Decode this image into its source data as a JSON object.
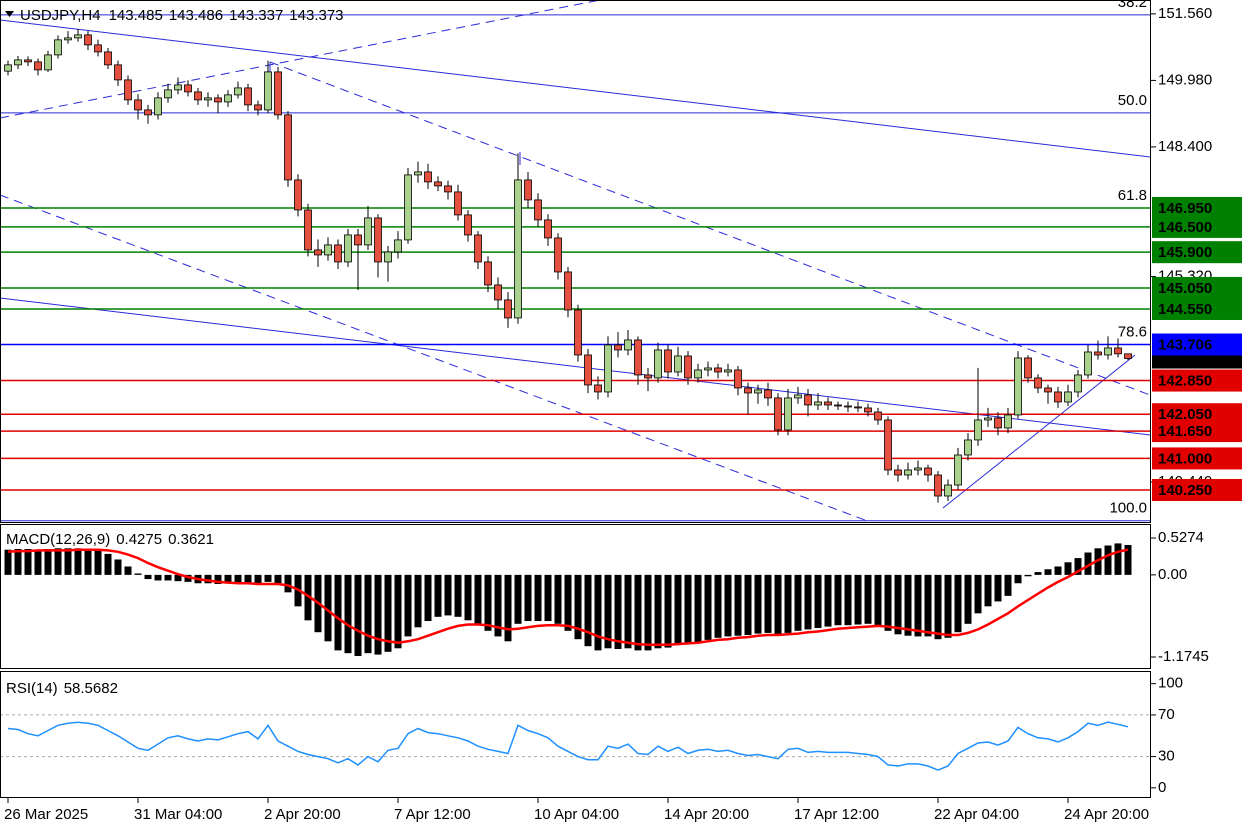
{
  "chart_data": [
    {
      "type": "candlestick",
      "title": "USDJPY,H4",
      "ylim": [
        139.49,
        151.89
      ],
      "yticks": [
        {
          "value": 151.56,
          "label": "151.560"
        },
        {
          "value": 149.98,
          "label": "149.980"
        },
        {
          "value": 148.4,
          "label": "148.400"
        },
        {
          "value": 145.32,
          "label": "145.320"
        },
        {
          "value": 140.44,
          "label": "140.440"
        }
      ],
      "xticks": [
        {
          "value": 0,
          "label": "26 Mar 2025"
        },
        {
          "value": 13,
          "label": "31 Mar 04:00"
        },
        {
          "value": 26,
          "label": "2 Apr 20:00"
        },
        {
          "value": 39,
          "label": "7 Apr 12:00"
        },
        {
          "value": 53,
          "label": "10 Apr 04:00"
        },
        {
          "value": 66,
          "label": "14 Apr 20:00"
        },
        {
          "value": 79,
          "label": "17 Apr 12:00"
        },
        {
          "value": 93,
          "label": "22 Apr 04:00"
        },
        {
          "value": 106,
          "label": "24 Apr 20:00"
        }
      ],
      "up_color": "#a9d18e",
      "down_color": "#e4503f",
      "levels": [
        {
          "value": 146.95,
          "label": "146.950",
          "color": "#008000"
        },
        {
          "value": 146.5,
          "label": "146.500",
          "color": "#008000"
        },
        {
          "value": 145.9,
          "label": "145.900",
          "color": "#008000"
        },
        {
          "value": 145.05,
          "label": "145.050",
          "color": "#008000"
        },
        {
          "value": 144.55,
          "label": "144.550",
          "color": "#008000"
        },
        {
          "value": 143.706,
          "label": "143.706",
          "color": "#0000ff"
        },
        {
          "value": 142.85,
          "label": "142.850",
          "color": "#e00000"
        },
        {
          "value": 142.05,
          "label": "142.050",
          "color": "#e00000"
        },
        {
          "value": 141.65,
          "label": "141.650",
          "color": "#e00000"
        },
        {
          "value": 141.0,
          "label": "141.000",
          "color": "#e00000"
        },
        {
          "value": 140.25,
          "label": "140.250",
          "color": "#e00000"
        }
      ],
      "fib": [
        {
          "value": 151.537,
          "label": "38.2"
        },
        {
          "value": 149.208,
          "label": "50.0"
        },
        {
          "value": 146.95,
          "label": "61.8"
        },
        {
          "value": 143.706,
          "label": "78.6"
        },
        {
          "value": 139.52,
          "label": "100.0"
        }
      ],
      "ohlc": [
        [
          150.2,
          150.45,
          150.1,
          150.349
        ],
        [
          150.349,
          150.56,
          150.25,
          150.467
        ],
        [
          150.467,
          150.55,
          150.32,
          150.42
        ],
        [
          150.42,
          150.5,
          150.1,
          150.23
        ],
        [
          150.23,
          150.68,
          150.18,
          150.586
        ],
        [
          150.586,
          151.05,
          150.5,
          150.943
        ],
        [
          150.943,
          151.15,
          150.85,
          150.99
        ],
        [
          150.99,
          151.2,
          150.9,
          151.061
        ],
        [
          151.061,
          151.15,
          150.7,
          150.824
        ],
        [
          150.824,
          150.95,
          150.55,
          150.657
        ],
        [
          150.657,
          150.75,
          150.25,
          150.349
        ],
        [
          150.349,
          150.45,
          149.85,
          149.992
        ],
        [
          149.992,
          150.1,
          149.4,
          149.517
        ],
        [
          149.517,
          149.65,
          149.05,
          149.279
        ],
        [
          149.279,
          149.4,
          148.95,
          149.161
        ],
        [
          149.161,
          149.7,
          149.05,
          149.565
        ],
        [
          149.565,
          149.9,
          149.45,
          149.755
        ],
        [
          149.755,
          150.05,
          149.65,
          149.873
        ],
        [
          149.873,
          149.98,
          149.6,
          149.707
        ],
        [
          149.707,
          149.8,
          149.4,
          149.517
        ],
        [
          149.517,
          149.7,
          149.35,
          149.565
        ],
        [
          149.565,
          149.65,
          149.2,
          149.469
        ],
        [
          149.469,
          149.75,
          149.35,
          149.636
        ],
        [
          149.636,
          149.95,
          149.55,
          149.802
        ],
        [
          149.802,
          149.9,
          149.25,
          149.398
        ],
        [
          149.398,
          149.5,
          149.15,
          149.279
        ],
        [
          149.279,
          150.45,
          149.2,
          150.182
        ],
        [
          150.182,
          150.3,
          149.05,
          149.161
        ],
        [
          149.161,
          149.25,
          147.45,
          147.616
        ],
        [
          147.616,
          147.75,
          146.75,
          146.903
        ],
        [
          146.903,
          147.05,
          145.8,
          145.953
        ],
        [
          145.953,
          146.2,
          145.55,
          145.834
        ],
        [
          145.834,
          146.25,
          145.7,
          146.072
        ],
        [
          146.072,
          146.2,
          145.5,
          145.668
        ],
        [
          145.668,
          146.45,
          145.55,
          146.309
        ],
        [
          146.309,
          146.45,
          145.0,
          146.072
        ],
        [
          146.072,
          147.0,
          145.95,
          146.713
        ],
        [
          146.713,
          146.8,
          145.3,
          145.668
        ],
        [
          145.668,
          146.05,
          145.2,
          145.905
        ],
        [
          145.905,
          146.4,
          145.75,
          146.191
        ],
        [
          146.191,
          147.9,
          146.1,
          147.735
        ],
        [
          147.735,
          148.05,
          147.55,
          147.806
        ],
        [
          147.806,
          148.0,
          147.4,
          147.569
        ],
        [
          147.569,
          147.7,
          147.35,
          147.474
        ],
        [
          147.474,
          147.6,
          147.15,
          147.331
        ],
        [
          147.331,
          147.5,
          146.65,
          146.785
        ],
        [
          146.785,
          146.9,
          146.15,
          146.309
        ],
        [
          146.309,
          146.4,
          145.5,
          145.668
        ],
        [
          145.668,
          145.8,
          144.95,
          145.121
        ],
        [
          145.121,
          145.3,
          144.55,
          144.765
        ],
        [
          144.765,
          144.95,
          144.1,
          144.337
        ],
        [
          144.337,
          148.25,
          144.2,
          147.616
        ],
        [
          147.616,
          147.8,
          146.95,
          147.141
        ],
        [
          147.141,
          147.3,
          146.5,
          146.666
        ],
        [
          146.666,
          146.8,
          146.05,
          146.238
        ],
        [
          146.238,
          146.35,
          145.25,
          145.43
        ],
        [
          145.43,
          145.55,
          144.35,
          144.527
        ],
        [
          144.527,
          144.65,
          143.3,
          143.458
        ],
        [
          143.458,
          143.6,
          142.55,
          142.745
        ],
        [
          142.745,
          142.95,
          142.4,
          142.579
        ],
        [
          142.579,
          143.9,
          142.45,
          143.696
        ],
        [
          143.696,
          144.0,
          143.4,
          143.577
        ],
        [
          143.577,
          144.05,
          143.45,
          143.815
        ],
        [
          143.815,
          143.9,
          142.75,
          142.983
        ],
        [
          142.983,
          143.15,
          142.6,
          142.912
        ],
        [
          142.912,
          143.75,
          142.8,
          143.577
        ],
        [
          143.577,
          143.7,
          142.9,
          143.054
        ],
        [
          143.054,
          143.65,
          142.95,
          143.434
        ],
        [
          143.434,
          143.55,
          142.75,
          142.912
        ],
        [
          142.912,
          143.25,
          142.8,
          143.102
        ],
        [
          143.102,
          143.3,
          142.95,
          143.149
        ],
        [
          143.149,
          143.25,
          142.9,
          143.054
        ],
        [
          143.054,
          143.25,
          142.95,
          143.102
        ],
        [
          143.102,
          143.2,
          142.5,
          142.674
        ],
        [
          142.674,
          142.8,
          142.05,
          142.555
        ],
        [
          142.555,
          142.75,
          142.3,
          142.627
        ],
        [
          142.627,
          142.8,
          142.25,
          142.437
        ],
        [
          142.437,
          142.55,
          141.55,
          141.676
        ],
        [
          141.676,
          142.65,
          141.55,
          142.437
        ],
        [
          142.437,
          142.7,
          142.3,
          142.508
        ],
        [
          142.508,
          142.65,
          142.0,
          142.27
        ],
        [
          142.27,
          142.55,
          142.15,
          142.341
        ],
        [
          142.341,
          142.45,
          142.15,
          142.27
        ],
        [
          142.27,
          142.35,
          142.15,
          142.246
        ],
        [
          142.246,
          142.35,
          142.1,
          142.223
        ],
        [
          142.223,
          142.35,
          142.1,
          142.199
        ],
        [
          142.199,
          142.3,
          142.0,
          142.104
        ],
        [
          142.104,
          142.2,
          141.8,
          141.914
        ],
        [
          141.914,
          142.0,
          140.6,
          140.726
        ],
        [
          140.726,
          140.85,
          140.45,
          140.607
        ],
        [
          140.607,
          140.9,
          140.5,
          140.726
        ],
        [
          140.726,
          140.95,
          140.6,
          140.773
        ],
        [
          140.773,
          140.85,
          140.45,
          140.607
        ],
        [
          140.607,
          140.7,
          139.95,
          140.108
        ],
        [
          140.108,
          140.5,
          139.99,
          140.369
        ],
        [
          140.369,
          141.25,
          140.25,
          141.082
        ],
        [
          141.082,
          141.6,
          140.95,
          141.439
        ],
        [
          141.439,
          143.15,
          141.3,
          141.914
        ],
        [
          141.914,
          142.2,
          141.75,
          141.961
        ],
        [
          141.961,
          142.1,
          141.55,
          141.724
        ],
        [
          141.724,
          142.2,
          141.6,
          142.033
        ],
        [
          142.033,
          143.55,
          141.95,
          143.387
        ],
        [
          143.387,
          143.45,
          142.8,
          142.912
        ],
        [
          142.912,
          143.0,
          142.55,
          142.674
        ],
        [
          142.674,
          142.75,
          142.3,
          142.579
        ],
        [
          142.579,
          142.7,
          142.2,
          142.341
        ],
        [
          142.341,
          142.75,
          142.25,
          142.579
        ],
        [
          142.579,
          143.1,
          142.45,
          142.983
        ],
        [
          142.983,
          143.7,
          142.9,
          143.529
        ],
        [
          143.529,
          143.8,
          143.35,
          143.458
        ],
        [
          143.458,
          143.9,
          143.35,
          143.625
        ],
        [
          143.625,
          143.85,
          143.4,
          143.485
        ],
        [
          143.485,
          143.486,
          143.337,
          143.373
        ]
      ]
    },
    {
      "type": "macd",
      "title": "MACD(12,26,9)",
      "ylim": [
        -1.332,
        0.7133
      ],
      "yticks": [
        0.5274,
        {
          "value": 0,
          "label": "0.00"
        },
        -1.1745
      ],
      "histogram_color": "#000000",
      "signal_color": "#ff0000",
      "histogram": [
        0.36,
        0.37,
        0.37,
        0.36,
        0.37,
        0.38,
        0.38,
        0.38,
        0.37,
        0.35,
        0.3,
        0.22,
        0.12,
        0.02,
        -0.06,
        -0.08,
        -0.08,
        -0.09,
        -0.1,
        -0.12,
        -0.12,
        -0.13,
        -0.12,
        -0.12,
        -0.13,
        -0.14,
        -0.1,
        -0.12,
        -0.25,
        -0.45,
        -0.65,
        -0.82,
        -0.95,
        -1.08,
        -1.12,
        -1.16,
        -1.12,
        -1.14,
        -1.1,
        -1.05,
        -0.88,
        -0.75,
        -0.66,
        -0.6,
        -0.58,
        -0.6,
        -0.65,
        -0.72,
        -0.8,
        -0.88,
        -0.95,
        -0.7,
        -0.66,
        -0.66,
        -0.66,
        -0.7,
        -0.8,
        -0.92,
        -1.02,
        -1.08,
        -1.05,
        -1.06,
        -1.05,
        -1.08,
        -1.08,
        -1.05,
        -1.04,
        -1.0,
        -0.98,
        -0.96,
        -0.93,
        -0.9,
        -0.88,
        -0.87,
        -0.86,
        -0.84,
        -0.83,
        -0.86,
        -0.83,
        -0.8,
        -0.78,
        -0.76,
        -0.74,
        -0.72,
        -0.72,
        -0.71,
        -0.7,
        -0.72,
        -0.8,
        -0.85,
        -0.87,
        -0.88,
        -0.88,
        -0.92,
        -0.9,
        -0.82,
        -0.7,
        -0.55,
        -0.45,
        -0.38,
        -0.3,
        -0.12,
        -0.02,
        0.04,
        0.08,
        0.12,
        0.18,
        0.24,
        0.32,
        0.38,
        0.42,
        0.45,
        0.4275
      ],
      "signal": [
        0.33,
        0.34,
        0.34,
        0.35,
        0.35,
        0.35,
        0.35,
        0.36,
        0.36,
        0.36,
        0.35,
        0.33,
        0.29,
        0.24,
        0.17,
        0.11,
        0.06,
        0.01,
        -0.03,
        -0.06,
        -0.08,
        -0.1,
        -0.11,
        -0.12,
        -0.12,
        -0.13,
        -0.13,
        -0.13,
        -0.15,
        -0.21,
        -0.3,
        -0.4,
        -0.51,
        -0.62,
        -0.72,
        -0.8,
        -0.87,
        -0.92,
        -0.95,
        -0.97,
        -0.95,
        -0.92,
        -0.87,
        -0.82,
        -0.77,
        -0.73,
        -0.71,
        -0.71,
        -0.72,
        -0.75,
        -0.78,
        -0.77,
        -0.75,
        -0.73,
        -0.72,
        -0.72,
        -0.73,
        -0.77,
        -0.82,
        -0.88,
        -0.92,
        -0.95,
        -0.97,
        -0.99,
        -1.0,
        -1.0,
        -1.0,
        -0.99,
        -0.98,
        -0.97,
        -0.95,
        -0.93,
        -0.92,
        -0.9,
        -0.89,
        -0.87,
        -0.86,
        -0.86,
        -0.85,
        -0.84,
        -0.82,
        -0.81,
        -0.79,
        -0.77,
        -0.76,
        -0.75,
        -0.74,
        -0.73,
        -0.74,
        -0.76,
        -0.78,
        -0.8,
        -0.82,
        -0.84,
        -0.86,
        -0.86,
        -0.83,
        -0.78,
        -0.71,
        -0.63,
        -0.55,
        -0.45,
        -0.36,
        -0.27,
        -0.18,
        -0.1,
        -0.03,
        0.05,
        0.13,
        0.21,
        0.28,
        0.33,
        0.3621
      ]
    },
    {
      "type": "line",
      "title": "RSI(14)",
      "color": "#1e90ff",
      "ylim": [
        -8.8,
        111.2
      ],
      "yticks": [
        100,
        70,
        30,
        0
      ],
      "levels": [
        70,
        30
      ],
      "values": [
        57,
        56,
        52,
        50,
        55,
        60,
        62,
        63,
        62,
        60,
        55,
        50,
        44,
        38,
        36,
        42,
        48,
        50,
        47,
        45,
        47,
        46,
        49,
        52,
        54,
        47,
        60,
        45,
        40,
        35,
        32,
        30,
        28,
        24,
        28,
        22,
        30,
        25,
        36,
        38,
        52,
        57,
        53,
        52,
        50,
        48,
        45,
        40,
        37,
        35,
        33,
        60,
        55,
        52,
        48,
        40,
        35,
        30,
        27,
        27,
        40,
        38,
        42,
        33,
        32,
        40,
        35,
        39,
        33,
        36,
        37,
        35,
        36,
        33,
        31,
        32,
        30,
        28,
        37,
        38,
        34,
        35,
        34,
        34,
        34,
        33,
        32,
        30,
        22,
        21,
        23,
        23,
        21,
        17,
        21,
        33,
        38,
        43,
        44,
        41,
        45,
        58,
        52,
        48,
        47,
        44,
        48,
        54,
        62,
        60,
        63,
        61,
        58.5682
      ]
    }
  ]
}
